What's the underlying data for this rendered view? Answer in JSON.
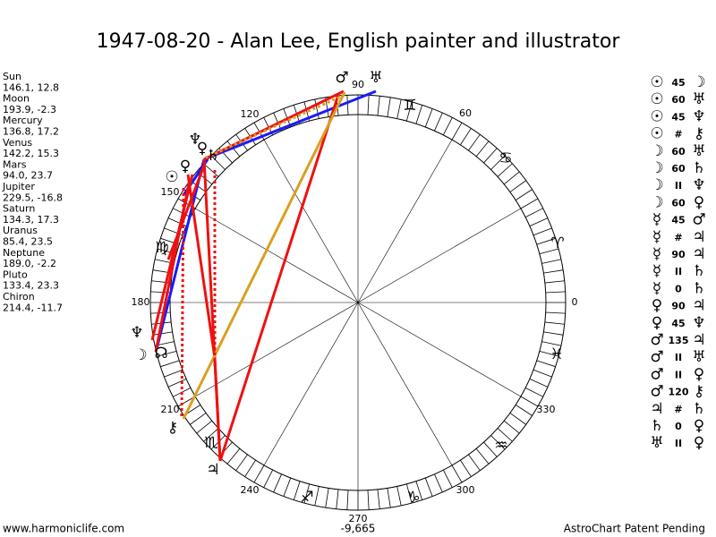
{
  "title": "1947-08-20 - Alan Lee, English painter and illustrator",
  "planets": [
    {
      "name": "Sun",
      "position": "146.1, 12.8"
    },
    {
      "name": "Moon",
      "position": "193.9, -2.3"
    },
    {
      "name": "Mercury",
      "position": "136.8, 17.2"
    },
    {
      "name": "Venus",
      "position": "142.2, 15.3"
    },
    {
      "name": "Mars",
      "position": "94.0, 23.7"
    },
    {
      "name": "Jupiter",
      "position": "229.5, -16.8"
    },
    {
      "name": "Saturn",
      "position": "134.3, 17.3"
    },
    {
      "name": "Uranus",
      "position": "85.4, 23.5"
    },
    {
      "name": "Neptune",
      "position": "189.0, -2.2"
    },
    {
      "name": "Pluto",
      "position": "133.4, 23.3"
    },
    {
      "name": "Chiron",
      "position": "214.4, -11.7"
    }
  ],
  "aspects": [
    {
      "from": "☉",
      "aspect": "45",
      "to": "☽"
    },
    {
      "from": "☉",
      "aspect": "60",
      "to": "♅"
    },
    {
      "from": "☉",
      "aspect": "45",
      "to": "♆"
    },
    {
      "from": "☉",
      "aspect": "#",
      "to": "⚷"
    },
    {
      "from": "☽",
      "aspect": "60",
      "to": "♅"
    },
    {
      "from": "☽",
      "aspect": "60",
      "to": "♄"
    },
    {
      "from": "☽",
      "aspect": "II",
      "to": "♆"
    },
    {
      "from": "☽",
      "aspect": "60",
      "to": "♀"
    },
    {
      "from": "☿",
      "aspect": "45",
      "to": "♂"
    },
    {
      "from": "☿",
      "aspect": "#",
      "to": "♃"
    },
    {
      "from": "☿",
      "aspect": "90",
      "to": "♃"
    },
    {
      "from": "☿",
      "aspect": "II",
      "to": "♄"
    },
    {
      "from": "☿",
      "aspect": "0",
      "to": "♄"
    },
    {
      "from": "♀",
      "aspect": "90",
      "to": "♃"
    },
    {
      "from": "♀",
      "aspect": "45",
      "to": "♆"
    },
    {
      "from": "♂",
      "aspect": "135",
      "to": "♃"
    },
    {
      "from": "♂",
      "aspect": "II",
      "to": "♅"
    },
    {
      "from": "♂",
      "aspect": "II",
      "to": "♀"
    },
    {
      "from": "♂",
      "aspect": "120",
      "to": "⚷"
    },
    {
      "from": "♃",
      "aspect": "#",
      "to": "♄"
    },
    {
      "from": "♄",
      "aspect": "0",
      "to": "♀"
    },
    {
      "from": "♅",
      "aspect": "II",
      "to": "♀"
    }
  ],
  "wheel": {
    "degree_labels": [
      "0",
      "60",
      "90",
      "120",
      "150",
      "180",
      "210",
      "240",
      "270",
      "300",
      "330"
    ],
    "signs": [
      "♊",
      "♋",
      "♈",
      "♓",
      "♒",
      "♑",
      "♐",
      "♏",
      "♍"
    ],
    "planet_glyphs": [
      "♂",
      "♅",
      "♆",
      "♀",
      "♄",
      "☉",
      "♀",
      "♆",
      "☽",
      "☊",
      "⚷",
      "♃"
    ]
  },
  "footer": {
    "left": "www.harmoniclife.com",
    "center": "-9,665",
    "right": "AstroChart Patent Pending"
  }
}
